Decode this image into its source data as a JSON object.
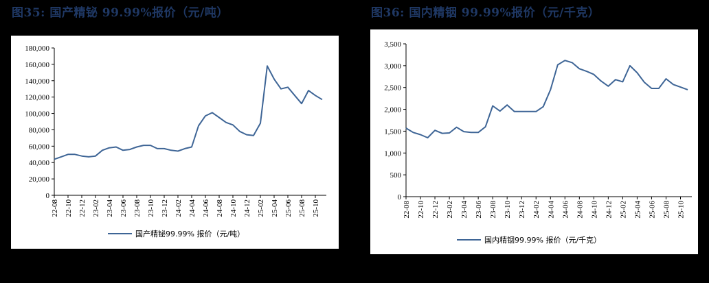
{
  "figures": {
    "left": {
      "title": "图35:  国产精铋 99.99%报价（元/吨）"
    },
    "right": {
      "title": "图36:  国内精铟 99.99%报价（元/千克）"
    }
  },
  "colors": {
    "line": "#3e6596",
    "title": "#1f3864",
    "axis": "#000000",
    "background": "#000000",
    "panel": "#ffffff"
  },
  "chart_data": [
    {
      "type": "line",
      "title": "图35:  国产精铋 99.99%报价（元/吨）",
      "xlabel": "",
      "ylabel": "",
      "ylim": [
        0,
        180000
      ],
      "yticks": [
        0,
        20000,
        40000,
        60000,
        80000,
        100000,
        120000,
        140000,
        160000,
        180000
      ],
      "ytick_labels": [
        "0",
        "20,000",
        "40,000",
        "60,000",
        "80,000",
        "100,000",
        "120,000",
        "140,000",
        "160,000",
        "180,000"
      ],
      "xtick_labels": [
        "22-08",
        "22-10",
        "22-12",
        "23-02",
        "23-04",
        "23-06",
        "23-08",
        "23-10",
        "23-12",
        "24-02",
        "24-04",
        "24-06",
        "24-08",
        "24-10",
        "24-12",
        "25-02",
        "25-04",
        "25-06",
        "25-08",
        "25-10"
      ],
      "grid": false,
      "legend_position": "bottom",
      "series": [
        {
          "name": "国产精铋99.99% 报价（元/吨）",
          "x": [
            "22-08",
            "22-09",
            "22-10",
            "22-11",
            "22-12",
            "23-01",
            "23-02",
            "23-03",
            "23-04",
            "23-05",
            "23-06",
            "23-07",
            "23-08",
            "23-09",
            "23-10",
            "23-11",
            "23-12",
            "24-01",
            "24-02",
            "24-03",
            "24-04",
            "24-05",
            "24-06",
            "24-07",
            "24-08",
            "24-09",
            "24-10",
            "24-11",
            "24-12",
            "25-01",
            "25-02",
            "25-03",
            "25-04",
            "25-05",
            "25-06",
            "25-07",
            "25-08",
            "25-09",
            "25-10",
            "25-11"
          ],
          "values": [
            44000,
            47000,
            50000,
            50000,
            48000,
            47000,
            48000,
            55000,
            58000,
            59000,
            55000,
            56000,
            59000,
            61000,
            61000,
            57000,
            57000,
            55000,
            54000,
            57000,
            59000,
            85000,
            97000,
            101000,
            95000,
            89000,
            86000,
            78000,
            74000,
            73000,
            88000,
            158000,
            142000,
            130000,
            132000,
            122000,
            112000,
            128000,
            122000,
            117000
          ]
        }
      ]
    },
    {
      "type": "line",
      "title": "图36:  国内精铟 99.99%报价（元/千克）",
      "xlabel": "",
      "ylabel": "",
      "ylim": [
        0,
        3500
      ],
      "yticks": [
        0,
        500,
        1000,
        1500,
        2000,
        2500,
        3000,
        3500
      ],
      "ytick_labels": [
        "0",
        "500",
        "1,000",
        "1,500",
        "2,000",
        "2,500",
        "3,000",
        "3,500"
      ],
      "xtick_labels": [
        "22-08",
        "22-10",
        "22-12",
        "23-02",
        "23-04",
        "23-06",
        "23-08",
        "23-10",
        "23-12",
        "24-02",
        "24-04",
        "24-06",
        "24-08",
        "24-10",
        "24-12",
        "25-02",
        "25-04",
        "25-06",
        "25-08",
        "25-10"
      ],
      "grid": false,
      "legend_position": "bottom",
      "series": [
        {
          "name": "国内精铟99.99% 报价（元/千克）",
          "x": [
            "22-08",
            "22-09",
            "22-10",
            "22-11",
            "22-12",
            "23-01",
            "23-02",
            "23-03",
            "23-04",
            "23-05",
            "23-06",
            "23-07",
            "23-08",
            "23-09",
            "23-10",
            "23-11",
            "23-12",
            "24-01",
            "24-02",
            "24-03",
            "24-04",
            "24-05",
            "24-06",
            "24-07",
            "24-08",
            "24-09",
            "24-10",
            "24-11",
            "24-12",
            "25-01",
            "25-02",
            "25-03",
            "25-04",
            "25-05",
            "25-06",
            "25-07",
            "25-08",
            "25-09",
            "25-10",
            "25-11"
          ],
          "values": [
            1570,
            1470,
            1420,
            1350,
            1520,
            1450,
            1460,
            1590,
            1490,
            1470,
            1470,
            1600,
            2080,
            1960,
            2100,
            1950,
            1950,
            1950,
            1950,
            2060,
            2450,
            3020,
            3120,
            3070,
            2930,
            2870,
            2800,
            2650,
            2530,
            2680,
            2630,
            3000,
            2840,
            2620,
            2480,
            2480,
            2700,
            2570,
            2510,
            2450
          ]
        }
      ]
    }
  ]
}
